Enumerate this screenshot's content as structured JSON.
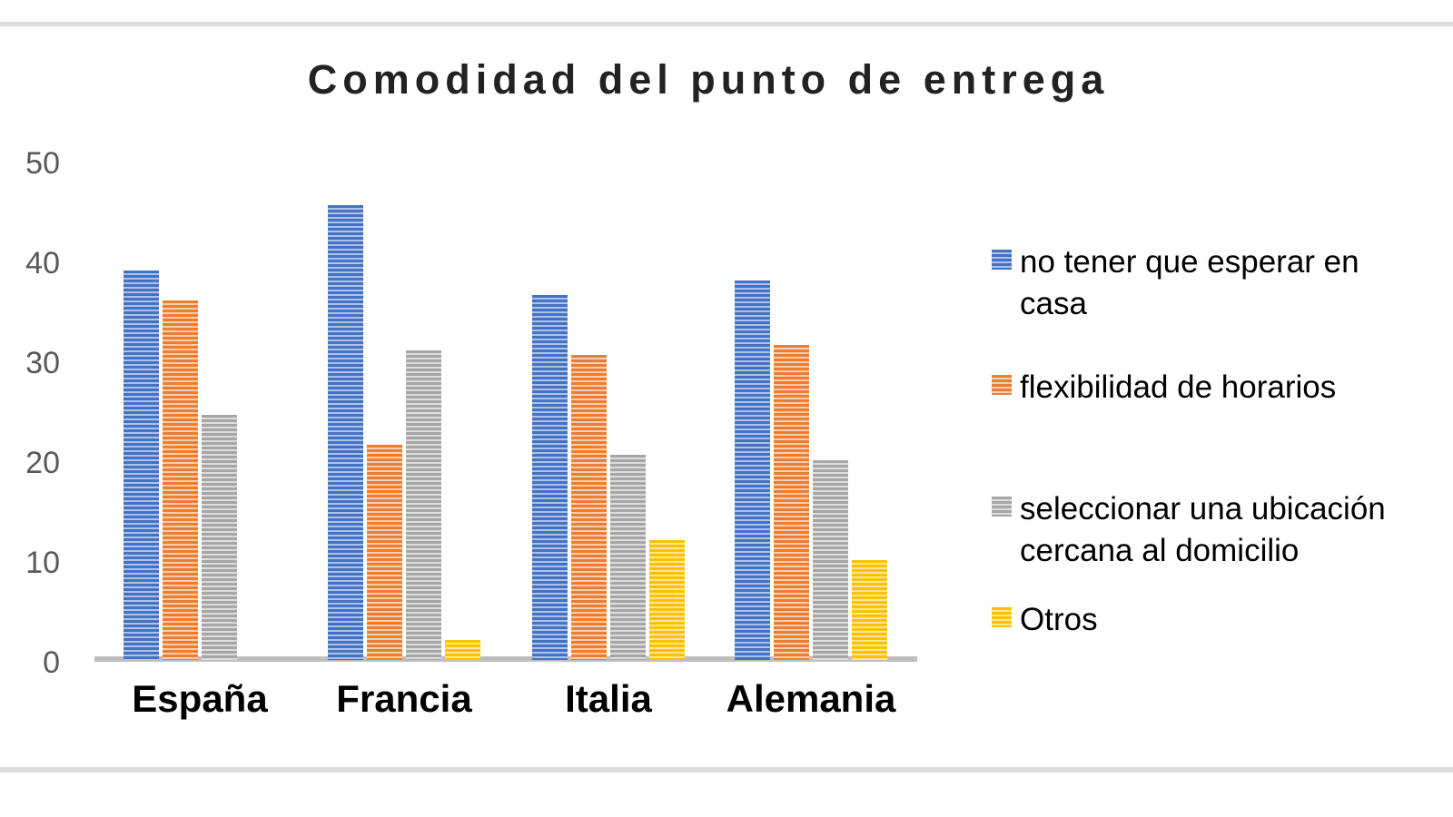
{
  "page": {
    "background_color": "#ffffff",
    "divider_color": "#dcdcdc"
  },
  "chart_data": {
    "type": "bar",
    "title": "Comodidad del punto de entrega",
    "categories": [
      "España",
      "Francia",
      "Italia",
      "Alemania"
    ],
    "series": [
      {
        "name": "no tener que esperar en casa",
        "color": "#4472c4",
        "color_light": "#aec1e7",
        "values": [
          39,
          45.5,
          36.5,
          38
        ]
      },
      {
        "name": "flexibilidad de horarios",
        "color": "#ed7d31",
        "color_light": "#f9cdb0",
        "values": [
          36,
          21.5,
          30.5,
          31.5
        ]
      },
      {
        "name": "seleccionar una ubicación cercana al domicilio",
        "color": "#a6a6a6",
        "color_light": "#dddddd",
        "values": [
          24.5,
          31,
          20.5,
          20
        ]
      },
      {
        "name": "Otros",
        "color": "#ffc000",
        "color_light": "#ffe globalization699",
        "values": [
          0,
          2,
          12,
          10
        ]
      }
    ],
    "ylim": [
      0,
      50
    ],
    "yticks": [
      0,
      10,
      20,
      30,
      40,
      50
    ],
    "grid": false,
    "bar_pattern": "light-horizontal-stripes",
    "legend_position": "right",
    "axis": {
      "tick_label_color": "#595959",
      "axis_line_color": "#bfbfbf",
      "category_label_color": "#000000"
    },
    "legend": {
      "items": [
        {
          "lines": [
            "no tener que esperar en",
            "casa"
          ]
        },
        {
          "lines": [
            "flexibilidad de horarios"
          ]
        },
        {
          "lines": [
            "seleccionar una ubicación",
            "cercana al domicilio"
          ]
        },
        {
          "lines": [
            "Otros"
          ]
        }
      ]
    }
  }
}
